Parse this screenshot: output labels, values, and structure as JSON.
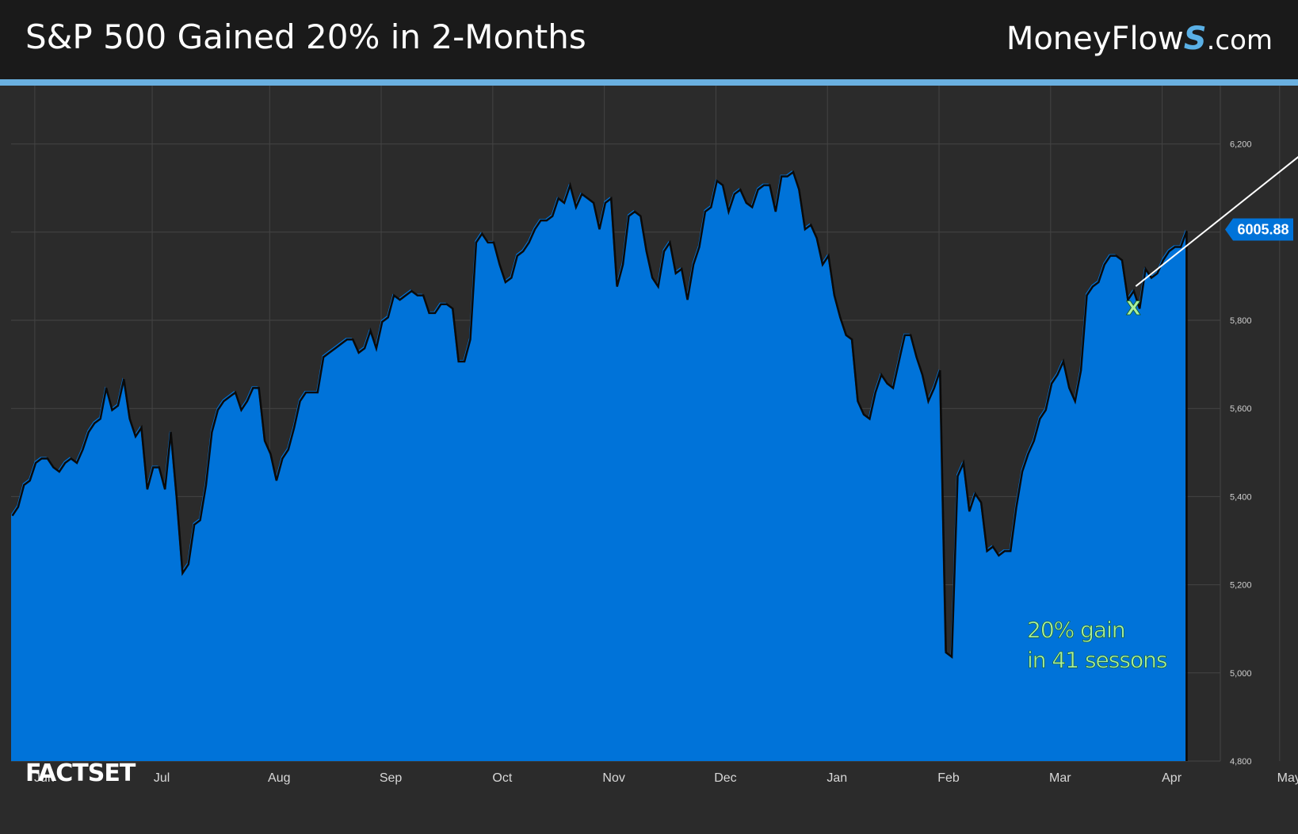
{
  "header": {
    "title": "S&P 500 Gained 20% in 2-Months",
    "brand_main": "MoneyFlow",
    "brand_s": "S",
    "brand_suffix": ".com"
  },
  "footer": {
    "logo_text": "FACTSET"
  },
  "colors": {
    "fill": "#0073d9",
    "grid": "#444444",
    "accent": "#6ab0e0",
    "annotation": "#a8f0a0"
  },
  "chart_data": {
    "type": "area",
    "title": "S&P 500 Gained 20% in 2-Months",
    "xlabel": "",
    "ylabel": "",
    "ylim": [
      4800,
      6300
    ],
    "y_ticks": [
      4800,
      5000,
      5200,
      5400,
      5600,
      5800,
      6000,
      6200
    ],
    "y_tick_labels": [
      "4,800",
      "5,000",
      "5,200",
      "5,400",
      "5,600",
      "5,800",
      "",
      "6,200"
    ],
    "months": [
      "Jun",
      "Jul",
      "Aug",
      "Sep",
      "Oct",
      "Nov",
      "Dec",
      "Jan",
      "Feb",
      "Mar",
      "Apr",
      "May"
    ],
    "month_start_index": [
      7,
      27,
      47,
      66,
      85,
      104,
      123,
      142,
      161,
      180,
      199,
      219
    ],
    "last_value_label": "6005.88",
    "annotation_lines": [
      "20% gain",
      "in 41 sessons"
    ],
    "marker_label": "X",
    "low_index": 191,
    "high_index": 235,
    "series": [
      {
        "values": [
          5360,
          5380,
          5430,
          5440,
          5480,
          5490,
          5490,
          5470,
          5460,
          5480,
          5490,
          5480,
          5510,
          5550,
          5570,
          5580,
          5650,
          5600,
          5610,
          5670,
          5580,
          5540,
          5560,
          5420,
          5470,
          5470,
          5420,
          5550,
          5400,
          5230,
          5250,
          5340,
          5350,
          5430,
          5550,
          5600,
          5620,
          5630,
          5640,
          5600,
          5620,
          5650,
          5650,
          5530,
          5500,
          5440,
          5490,
          5510,
          5560,
          5620,
          5640,
          5640,
          5640,
          5720,
          5730,
          5740,
          5750,
          5760,
          5760,
          5730,
          5740,
          5780,
          5740,
          5800,
          5810,
          5860,
          5850,
          5860,
          5870,
          5860,
          5860,
          5820,
          5820,
          5840,
          5840,
          5830,
          5710,
          5710,
          5760,
          5980,
          6000,
          5980,
          5980,
          5930,
          5890,
          5900,
          5950,
          5960,
          5980,
          6010,
          6030,
          6030,
          6040,
          6080,
          6070,
          6110,
          6060,
          6090,
          6080,
          6070,
          6010,
          6070,
          6080,
          5880,
          5930,
          6040,
          6050,
          6040,
          5960,
          5900,
          5880,
          5960,
          5980,
          5910,
          5920,
          5850,
          5930,
          5970,
          6050,
          6060,
          6120,
          6110,
          6050,
          6090,
          6100,
          6070,
          6060,
          6100,
          6110,
          6110,
          6050,
          6130,
          6130,
          6140,
          6100,
          6010,
          6020,
          5990,
          5930,
          5950,
          5860,
          5810,
          5770,
          5760,
          5620,
          5590,
          5580,
          5640,
          5680,
          5660,
          5650,
          5710,
          5770,
          5770,
          5720,
          5680,
          5620,
          5650,
          5690,
          5050,
          5040,
          5450,
          5480,
          5370,
          5410,
          5390,
          5280,
          5290,
          5270,
          5280,
          5280,
          5380,
          5460,
          5500,
          5530,
          5580,
          5600,
          5660,
          5680,
          5710,
          5650,
          5620,
          5690,
          5860,
          5880,
          5890,
          5930,
          5950,
          5950,
          5940,
          5850,
          5870,
          5830,
          5920,
          5900,
          5910,
          5940,
          5960,
          5970,
          5970,
          6005.88
        ]
      }
    ]
  }
}
